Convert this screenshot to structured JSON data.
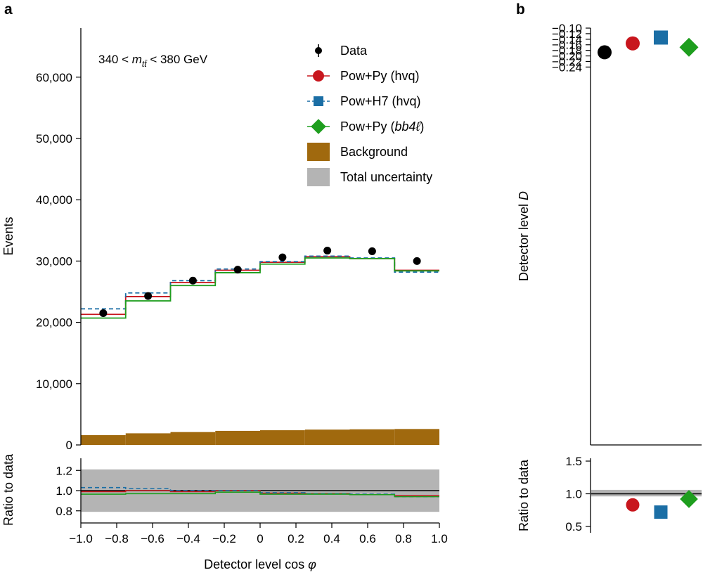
{
  "panel_labels": {
    "a": "a",
    "b": "b"
  },
  "annotation": {
    "prefix": "340 < ",
    "symbol": "m",
    "subscript": "tt̄",
    "suffix": " < 380 GeV"
  },
  "legend": [
    {
      "key": "data",
      "label": "Data",
      "style": "errorbar",
      "color": "#000000"
    },
    {
      "key": "hvq_py",
      "label": "Pow+Py (hvq)",
      "style": "circle",
      "color": "#c8161d"
    },
    {
      "key": "hvq_h7",
      "label": "Pow+H7 (hvq)",
      "style": "square-dashed",
      "color": "#1b6ea5"
    },
    {
      "key": "bb4l",
      "label_prefix": "Pow+Py (",
      "label_italic": "bb4ℓ",
      "label_suffix": ")",
      "style": "diamond",
      "color": "#1e9e1e"
    },
    {
      "key": "background",
      "label": "Background",
      "style": "fill",
      "color": "#a0690e"
    },
    {
      "key": "uncertainty",
      "label": "Total uncertainty",
      "style": "fill",
      "color": "#b4b4b4"
    }
  ],
  "chart_data": [
    {
      "id": "a-main",
      "type": "histogram",
      "xlabel_text": "Detector level cos ",
      "xlabel_italic": "φ",
      "ylabel": "Events",
      "xlim": [
        -1.0,
        1.0
      ],
      "ylim": [
        0,
        68000
      ],
      "x_ticks": [
        "−1.0",
        "−0.8",
        "−0.6",
        "−0.4",
        "−0.2",
        "0",
        "0.2",
        "0.4",
        "0.6",
        "0.8",
        "1.0"
      ],
      "y_ticks": [
        "0",
        "10,000",
        "20,000",
        "30,000",
        "40,000",
        "50,000",
        "60,000"
      ],
      "bin_edges": [
        -1.0,
        -0.75,
        -0.5,
        -0.25,
        0.0,
        0.25,
        0.5,
        0.75,
        1.0
      ],
      "series": [
        {
          "key": "data",
          "name": "Data",
          "values": [
            21500,
            24300,
            26800,
            28600,
            30600,
            31700,
            31600,
            30000
          ]
        },
        {
          "key": "hvq_py",
          "name": "Pow+Py (hvq)",
          "values": [
            21300,
            24200,
            26500,
            28500,
            29800,
            30700,
            30400,
            28500
          ]
        },
        {
          "key": "hvq_h7",
          "name": "Pow+H7 (hvq)",
          "values": [
            22200,
            24800,
            26800,
            28700,
            29900,
            30800,
            30500,
            28200
          ]
        },
        {
          "key": "bb4l",
          "name": "Pow+Py (bb4ℓ)",
          "values": [
            20700,
            23500,
            26000,
            28100,
            29500,
            30500,
            30400,
            28400
          ]
        },
        {
          "key": "background",
          "name": "Background",
          "values": [
            1600,
            1900,
            2100,
            2300,
            2400,
            2500,
            2550,
            2600
          ]
        }
      ]
    },
    {
      "id": "a-ratio",
      "type": "histogram",
      "xlabel_text": "Detector level cos ",
      "xlabel_italic": "φ",
      "ylabel": "Ratio to data",
      "xlim": [
        -1.0,
        1.0
      ],
      "ylim": [
        0.68,
        1.32
      ],
      "y_ticks": [
        "0.8",
        "1.0",
        "1.2"
      ],
      "uncertainty_band": [
        0.79,
        1.21
      ],
      "reference_line": 1.0,
      "bin_edges": [
        -1.0,
        -0.75,
        -0.5,
        -0.25,
        0.0,
        0.25,
        0.5,
        0.75,
        1.0
      ],
      "series": [
        {
          "key": "hvq_py",
          "name": "Pow+Py (hvq)",
          "values": [
            0.99,
            1.0,
            0.99,
            1.0,
            0.975,
            0.97,
            0.96,
            0.95
          ]
        },
        {
          "key": "hvq_h7",
          "name": "Pow+H7 (hvq)",
          "values": [
            1.03,
            1.02,
            1.0,
            1.0,
            0.98,
            0.97,
            0.965,
            0.94
          ]
        },
        {
          "key": "bb4l",
          "name": "Pow+Py (bb4ℓ)",
          "values": [
            0.965,
            0.97,
            0.97,
            0.985,
            0.965,
            0.965,
            0.96,
            0.94
          ]
        }
      ]
    },
    {
      "id": "b-main",
      "type": "scatter",
      "ylabel_text": "Detector level ",
      "ylabel_italic": "D",
      "ylim": [
        -0.25,
        -0.1
      ],
      "y_ticks": [
        "−0.10",
        "−0.12",
        "−0.14",
        "−0.16",
        "−0.18",
        "−0.20",
        "−0.22",
        "−0.24"
      ],
      "points": [
        {
          "key": "data",
          "name": "Data",
          "y": -0.187,
          "yerr": 0.01
        },
        {
          "key": "hvq_py",
          "name": "Pow+Py (hvq)",
          "y": -0.155
        },
        {
          "key": "hvq_h7",
          "name": "Pow+H7 (hvq)",
          "y": -0.134
        },
        {
          "key": "bb4l",
          "name": "Pow+Py (bb4ℓ)",
          "y": -0.169
        }
      ]
    },
    {
      "id": "b-ratio",
      "type": "scatter",
      "ylabel": "Ratio to data",
      "ylim": [
        0.45,
        1.55
      ],
      "y_ticks": [
        "1.5",
        "1.0",
        "0.5"
      ],
      "uncertainty_band": [
        0.96,
        1.06
      ],
      "reference_line": 1.0,
      "points": [
        {
          "key": "hvq_py",
          "name": "Pow+Py (hvq)",
          "y": 0.83
        },
        {
          "key": "hvq_h7",
          "name": "Pow+H7 (hvq)",
          "y": 0.72
        },
        {
          "key": "bb4l",
          "name": "Pow+Py (bb4ℓ)",
          "y": 0.92
        }
      ]
    }
  ]
}
